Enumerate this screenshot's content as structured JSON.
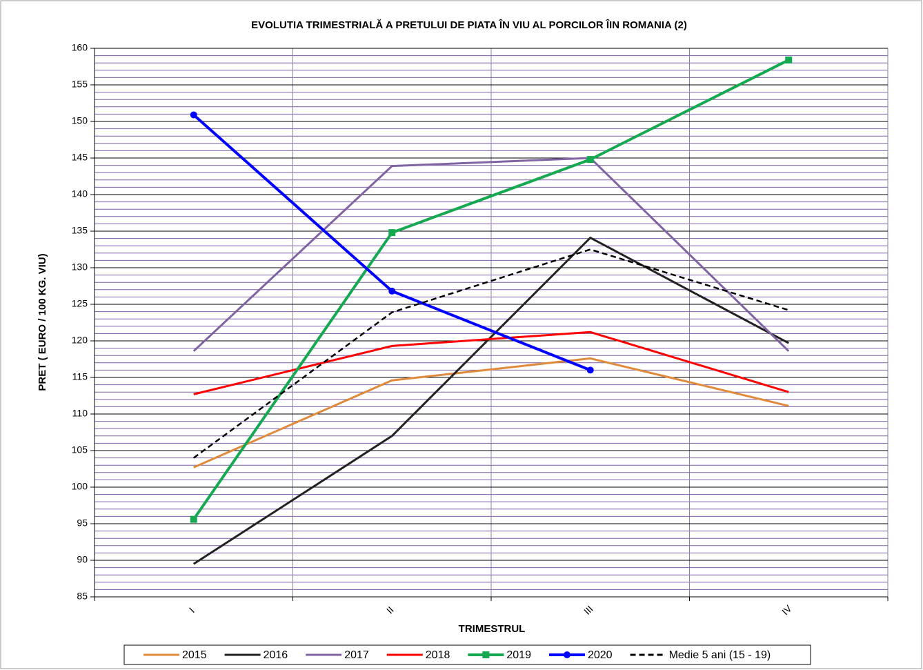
{
  "chart_data": {
    "type": "line",
    "title": "EVOLUTIA TRIMESTRIALĂ A PRETULUI  DE PIATA ÎN VIU AL PORCILOR ÎIN ROMANIA (2)",
    "x_label": "TRIMESTRUL",
    "y_label": "PRET ( EURO / 100 KG. VIU)",
    "categories": [
      "I",
      "II",
      "III",
      "IV"
    ],
    "ylim": [
      85,
      160
    ],
    "yticks": [
      85,
      90,
      95,
      100,
      105,
      110,
      115,
      120,
      125,
      130,
      135,
      140,
      145,
      150,
      155,
      160
    ],
    "minor_grid_step": 1,
    "grid": true,
    "legend": "bottom",
    "series": [
      {
        "name": "2015",
        "color": "#e08a3c",
        "values": [
          102.7,
          114.6,
          117.6,
          111.1
        ]
      },
      {
        "name": "2016",
        "color": "#222222",
        "values": [
          89.5,
          107,
          134.1,
          119.7
        ]
      },
      {
        "name": "2017",
        "color": "#8064a2",
        "values": [
          118.6,
          143.9,
          145,
          118.6
        ]
      },
      {
        "name": "2018",
        "color": "#ff0000",
        "values": [
          112.7,
          119.3,
          121.2,
          113
        ]
      },
      {
        "name": "2019",
        "color": "#17a852",
        "marker": "square",
        "values": [
          95.6,
          134.8,
          144.8,
          158.4
        ]
      },
      {
        "name": "2020",
        "color": "#0000ff",
        "marker": "circle",
        "values": [
          150.9,
          126.8,
          116,
          null
        ]
      },
      {
        "name": "Medie 5 ani (15 - 19)",
        "color": "#000000",
        "dash": true,
        "values": [
          104,
          123.9,
          132.5,
          124.2
        ]
      }
    ]
  }
}
